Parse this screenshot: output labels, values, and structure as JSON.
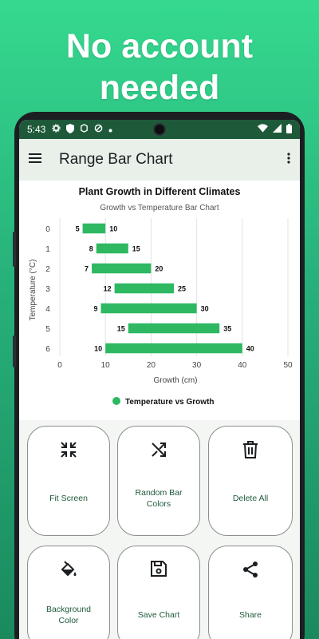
{
  "promo": {
    "line1": "No account",
    "line2": "needed"
  },
  "status_bar": {
    "time": "5:43"
  },
  "app_bar": {
    "title": "Range Bar Chart"
  },
  "chart_data": {
    "type": "bar",
    "orientation": "horizontal-range",
    "title": "Plant Growth in Different Climates",
    "subtitle": "Growth vs Temperature Bar Chart",
    "xlabel": "Growth (cm)",
    "ylabel": "Temperature (°C)",
    "categories": [
      "0",
      "1",
      "2",
      "3",
      "4",
      "5",
      "6"
    ],
    "series": [
      {
        "name": "Temperature vs Growth",
        "color": "#2eb862",
        "ranges": [
          [
            5,
            10
          ],
          [
            8,
            15
          ],
          [
            7,
            20
          ],
          [
            12,
            25
          ],
          [
            9,
            30
          ],
          [
            15,
            35
          ],
          [
            10,
            40
          ]
        ]
      }
    ],
    "xlim": [
      0,
      50
    ],
    "xticks": [
      0,
      10,
      20,
      30,
      40,
      50
    ],
    "grid": true,
    "legend": "bottom-center"
  },
  "actions": [
    {
      "label": "Fit Screen",
      "icon": "fit-screen-icon"
    },
    {
      "label": "Random Bar Colors",
      "icon": "shuffle-icon"
    },
    {
      "label": "Delete All",
      "icon": "trash-icon"
    },
    {
      "label": "Background Color",
      "icon": "paint-bucket-icon"
    },
    {
      "label": "Save Chart",
      "icon": "save-icon"
    },
    {
      "label": "Share",
      "icon": "share-icon"
    }
  ]
}
